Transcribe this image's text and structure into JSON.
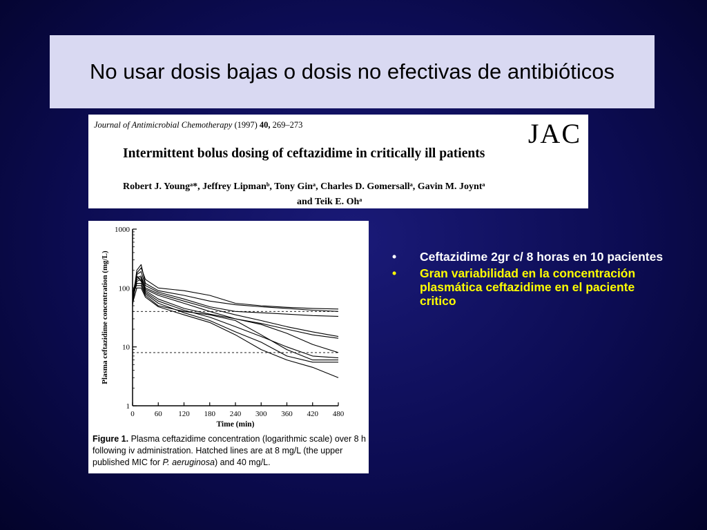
{
  "slide": {
    "title": "No usar dosis bajas o dosis no efectivas de antibióticos"
  },
  "paper": {
    "journal_name": "Journal of Antimicrobial Chemotherapy",
    "journal_year": "(1997)",
    "journal_volume": "40,",
    "journal_pages": "269–273",
    "logo_text": "JAC",
    "article_title": "Intermittent bolus dosing of ceftazidime in critically ill patients",
    "authors_line1": "Robert J. Youngᵃ*, Jeffrey Lipmanᵇ, Tony Ginᵃ, Charles D. Gomersallᵃ, Gavin M. Joyntᵃ",
    "authors_line2": "and Teik E. Ohᵃ"
  },
  "figure": {
    "caption_label": "Figure 1.",
    "caption_text": " Plasma ceftazidime concentration (logarithmic scale) over 8 h following iv administration. Hatched lines are at 8 mg/L (the upper published MIC for ",
    "caption_species": "P. aeruginosa",
    "caption_end": ") and 40 mg/L."
  },
  "bullets": [
    {
      "marker": "•",
      "text": "Ceftazidime 2gr c/ 8 horas  en 10 pacientes",
      "color": "#ffffff"
    },
    {
      "marker": "•",
      "text": "Gran variabilidad en la concentración plasmática ceftazidime en el paciente critico",
      "color": "#ffff00"
    }
  ],
  "chart_data": {
    "type": "line",
    "xlabel": "Time (min)",
    "ylabel": "Plasma ceftazidime concentration (mg/L)",
    "x_scale": "linear",
    "y_scale": "log",
    "xlim": [
      0,
      480
    ],
    "ylim": [
      1,
      1000
    ],
    "x_ticks": [
      "0",
      "60",
      "120",
      "180",
      "240",
      "300",
      "360",
      "420",
      "480"
    ],
    "y_ticks": [
      "1",
      "10",
      "100",
      "1000"
    ],
    "reference_lines": [
      {
        "y": 8,
        "style": "dashed"
      },
      {
        "y": 40,
        "style": "dashed"
      }
    ],
    "series": [
      {
        "x": [
          0,
          10,
          20,
          30,
          60,
          120,
          180,
          240,
          300,
          360,
          420,
          480
        ],
        "values": [
          50,
          180,
          220,
          140,
          100,
          90,
          75,
          55,
          50,
          47,
          45,
          44
        ]
      },
      {
        "x": [
          0,
          10,
          20,
          30,
          60,
          120,
          180,
          240,
          300,
          360,
          420,
          480
        ],
        "values": [
          60,
          200,
          250,
          120,
          90,
          75,
          60,
          52,
          48,
          45,
          42,
          40
        ]
      },
      {
        "x": [
          0,
          10,
          20,
          30,
          60,
          120,
          180,
          240,
          300,
          360,
          420,
          480
        ],
        "values": [
          55,
          170,
          190,
          110,
          85,
          65,
          48,
          40,
          38,
          36,
          34,
          33
        ]
      },
      {
        "x": [
          0,
          10,
          20,
          30,
          60,
          120,
          180,
          240,
          300,
          360,
          420,
          480
        ],
        "values": [
          70,
          150,
          160,
          100,
          80,
          60,
          45,
          35,
          28,
          22,
          18,
          15
        ]
      },
      {
        "x": [
          0,
          10,
          20,
          30,
          60,
          120,
          180,
          240,
          300,
          360,
          420,
          480
        ],
        "values": [
          65,
          140,
          150,
          95,
          75,
          55,
          40,
          30,
          25,
          20,
          16,
          14
        ]
      },
      {
        "x": [
          0,
          10,
          20,
          30,
          60,
          120,
          180,
          240,
          300,
          360,
          420,
          480
        ],
        "values": [
          80,
          160,
          130,
          90,
          65,
          45,
          36,
          30,
          24,
          17,
          11,
          8
        ]
      },
      {
        "x": [
          0,
          10,
          20,
          30,
          60,
          120,
          180,
          240,
          300,
          360,
          420,
          480
        ],
        "values": [
          60,
          130,
          140,
          85,
          60,
          42,
          32,
          22,
          15,
          10,
          7,
          6.5
        ]
      },
      {
        "x": [
          0,
          10,
          20,
          30,
          60,
          120,
          180,
          240,
          300,
          360,
          420,
          480
        ],
        "values": [
          70,
          120,
          120,
          80,
          55,
          38,
          28,
          18,
          12,
          7,
          5.5,
          5.5
        ]
      },
      {
        "x": [
          0,
          10,
          20,
          30,
          60,
          120,
          180,
          240,
          300,
          360,
          420,
          480
        ],
        "values": [
          90,
          110,
          110,
          75,
          50,
          40,
          35,
          28,
          16,
          9,
          6,
          6
        ]
      },
      {
        "x": [
          0,
          10,
          20,
          30,
          60,
          120,
          180,
          240,
          300,
          360,
          420,
          480
        ],
        "values": [
          55,
          100,
          100,
          70,
          48,
          35,
          26,
          16,
          9,
          6,
          4.5,
          3
        ]
      }
    ]
  }
}
